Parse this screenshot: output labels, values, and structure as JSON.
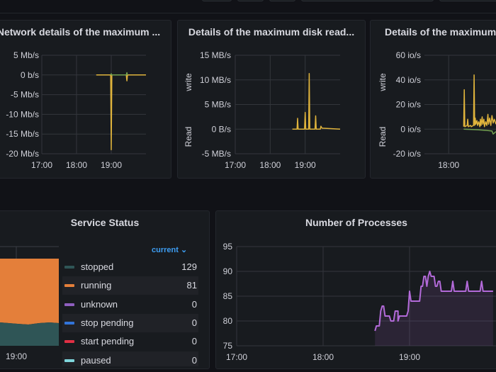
{
  "colors": {
    "background": "#111217",
    "panel": "#181b1f",
    "grid": "#3a3d44",
    "yellow": "#e0b43c",
    "green": "#73a150",
    "purple": "#b36ad9",
    "teal": "#2f5556",
    "orange": "#e47f3a",
    "accent": "#3d9df2"
  },
  "panels": {
    "network": {
      "title": "Network details of the maximum ...",
      "chart_data": {
        "type": "line",
        "xlim": [
          "17:00",
          "20:00"
        ],
        "ylim": [
          -20,
          5
        ],
        "x_ticks": [
          "17:00",
          "18:00",
          "19:00"
        ],
        "y_ticks": [
          "5 Mb/s",
          "0 b/s",
          "-5 Mb/s",
          "-10 Mb/s",
          "-15 Mb/s",
          "-20 Mb/s"
        ],
        "y_tick_values": [
          5,
          0,
          -5,
          -10,
          -15,
          -20
        ],
        "series": [
          {
            "color": "#e0b43c",
            "points": [
              [
                "18:34",
                0
              ],
              [
                "18:59",
                0
              ],
              [
                "19:00",
                -19
              ],
              [
                "19:01",
                0
              ],
              [
                "19:26",
                0
              ],
              [
                "19:27",
                -1.5
              ],
              [
                "19:28",
                0
              ],
              [
                "20:00",
                0
              ]
            ]
          },
          {
            "color": "#73a150",
            "points": [
              [
                "18:59",
                0
              ],
              [
                "19:00",
                0.3
              ],
              [
                "19:01",
                0
              ],
              [
                "19:26",
                0
              ],
              [
                "19:27",
                0.6
              ],
              [
                "19:28",
                0
              ]
            ]
          }
        ]
      }
    },
    "disk_read": {
      "title": "Details of the maximum disk read...",
      "ylabel_top": "write",
      "ylabel_bottom": "Read",
      "chart_data": {
        "type": "line",
        "xlim": [
          "17:00",
          "20:00"
        ],
        "ylim": [
          -5,
          15
        ],
        "x_ticks": [
          "17:00",
          "18:00",
          "19:00"
        ],
        "y_ticks": [
          "15 MB/s",
          "10 MB/s",
          "5 MB/s",
          "0 B/s",
          "-5 MB/s"
        ],
        "y_tick_values": [
          15,
          10,
          5,
          0,
          -5
        ],
        "series": [
          {
            "color": "#e0b43c",
            "points": [
              [
                "18:38",
                0
              ],
              [
                "18:46",
                0
              ],
              [
                "18:47",
                2.2
              ],
              [
                "18:48",
                0
              ],
              [
                "18:59",
                0
              ],
              [
                "19:00",
                3.4
              ],
              [
                "19:01",
                0
              ],
              [
                "19:06",
                0
              ],
              [
                "19:07",
                11.3
              ],
              [
                "19:08",
                0
              ],
              [
                "19:17",
                0
              ],
              [
                "19:18",
                2.7
              ],
              [
                "19:19",
                0
              ],
              [
                "19:26",
                0
              ],
              [
                "19:27",
                0.6
              ],
              [
                "19:29",
                0.2
              ],
              [
                "20:00",
                0
              ]
            ]
          }
        ]
      }
    },
    "disk_iops": {
      "title": "Details of the maximum ...",
      "ylabel_top": "write",
      "ylabel_bottom": "Read",
      "chart_data": {
        "type": "line",
        "xlim": [
          "17:18",
          "20:00"
        ],
        "ylim": [
          -20,
          60
        ],
        "x_ticks": [
          "18:00"
        ],
        "y_ticks": [
          "60 io/s",
          "40 io/s",
          "20 io/s",
          "0 io/s",
          "-20 io/s"
        ],
        "y_tick_values": [
          60,
          40,
          20,
          0,
          -20
        ],
        "series": [
          {
            "color": "#e0b43c",
            "points": [
              [
                "18:26",
                2
              ],
              [
                "18:27",
                32
              ],
              [
                "18:28",
                2
              ],
              [
                "18:32",
                3
              ],
              [
                "18:33",
                8
              ],
              [
                "18:34",
                2
              ],
              [
                "18:38",
                3
              ],
              [
                "18:39",
                2
              ],
              [
                "18:43",
                3
              ],
              [
                "18:44",
                44
              ],
              [
                "18:45",
                3
              ],
              [
                "18:46",
                9
              ],
              [
                "18:47",
                4
              ],
              [
                "18:49",
                7
              ],
              [
                "18:50",
                3
              ],
              [
                "18:52",
                6
              ],
              [
                "18:54",
                2
              ],
              [
                "18:55",
                8
              ],
              [
                "18:56",
                3
              ],
              [
                "18:58",
                10
              ],
              [
                "18:59",
                4
              ],
              [
                "19:01",
                8
              ],
              [
                "19:02",
                2
              ],
              [
                "19:04",
                6
              ],
              [
                "19:06",
                3
              ],
              [
                "19:08",
                12
              ],
              [
                "19:09",
                4
              ],
              [
                "19:11",
                9
              ],
              [
                "19:13",
                3
              ],
              [
                "19:15",
                11
              ],
              [
                "19:17",
                5
              ],
              [
                "19:19",
                8
              ],
              [
                "19:22",
                4
              ]
            ]
          },
          {
            "color": "#73a150",
            "points": [
              [
                "18:26",
                0
              ],
              [
                "18:50",
                -0.5
              ],
              [
                "19:05",
                -1
              ],
              [
                "19:15",
                -1.5
              ],
              [
                "19:17",
                -4
              ],
              [
                "19:22",
                -2
              ]
            ]
          }
        ]
      }
    },
    "service_status": {
      "title": "Service Status",
      "x_ticks": [
        "19:00"
      ],
      "legend_header": "current",
      "legend": [
        {
          "name": "stopped",
          "value": "129",
          "color": "#2f5556"
        },
        {
          "name": "running",
          "value": "81",
          "color": "#e47f3a"
        },
        {
          "name": "unknown",
          "value": "0",
          "color": "#8f5fbf"
        },
        {
          "name": "stop pending",
          "value": "0",
          "color": "#3274d9"
        },
        {
          "name": "start pending",
          "value": "0",
          "color": "#e02f44"
        },
        {
          "name": "paused",
          "value": "0",
          "color": "#7fd6dc"
        }
      ]
    },
    "processes": {
      "title": "Number of Processes",
      "chart_data": {
        "type": "area",
        "xlim": [
          "17:00",
          "20:00"
        ],
        "ylim": [
          75,
          95
        ],
        "x_ticks": [
          "17:00",
          "18:00",
          "19:00"
        ],
        "y_ticks": [
          "95",
          "90",
          "85",
          "80",
          "75"
        ],
        "y_tick_values": [
          95,
          90,
          85,
          80,
          75
        ],
        "series": [
          {
            "color": "#b36ad9",
            "points": [
              [
                "18:36",
                78
              ],
              [
                "18:37",
                79
              ],
              [
                "18:39",
                79
              ],
              [
                "18:40",
                82
              ],
              [
                "18:41",
                83
              ],
              [
                "18:42",
                83
              ],
              [
                "18:43",
                81
              ],
              [
                "18:46",
                81
              ],
              [
                "18:47",
                80
              ],
              [
                "18:49",
                80
              ],
              [
                "18:50",
                82
              ],
              [
                "18:52",
                82
              ],
              [
                "18:52",
                80
              ],
              [
                "18:53",
                81
              ],
              [
                "18:58",
                81
              ],
              [
                "18:59",
                82
              ],
              [
                "19:00",
                86
              ],
              [
                "19:01",
                84
              ],
              [
                "19:07",
                84
              ],
              [
                "19:08",
                87
              ],
              [
                "19:09",
                87
              ],
              [
                "19:10",
                89
              ],
              [
                "19:11",
                89
              ],
              [
                "19:12",
                87
              ],
              [
                "19:13",
                89
              ],
              [
                "19:14",
                90
              ],
              [
                "19:15",
                89
              ],
              [
                "19:17",
                89
              ],
              [
                "19:18",
                87
              ],
              [
                "19:19",
                87
              ],
              [
                "19:20",
                88
              ],
              [
                "19:21",
                88
              ],
              [
                "19:22",
                86
              ],
              [
                "19:29",
                86
              ],
              [
                "19:30",
                88
              ],
              [
                "19:31",
                86
              ],
              [
                "19:39",
                86
              ],
              [
                "19:40",
                88
              ],
              [
                "19:41",
                86
              ],
              [
                "19:49",
                86
              ],
              [
                "19:50",
                88
              ],
              [
                "19:51",
                86
              ],
              [
                "19:58",
                86
              ]
            ]
          }
        ]
      }
    }
  }
}
